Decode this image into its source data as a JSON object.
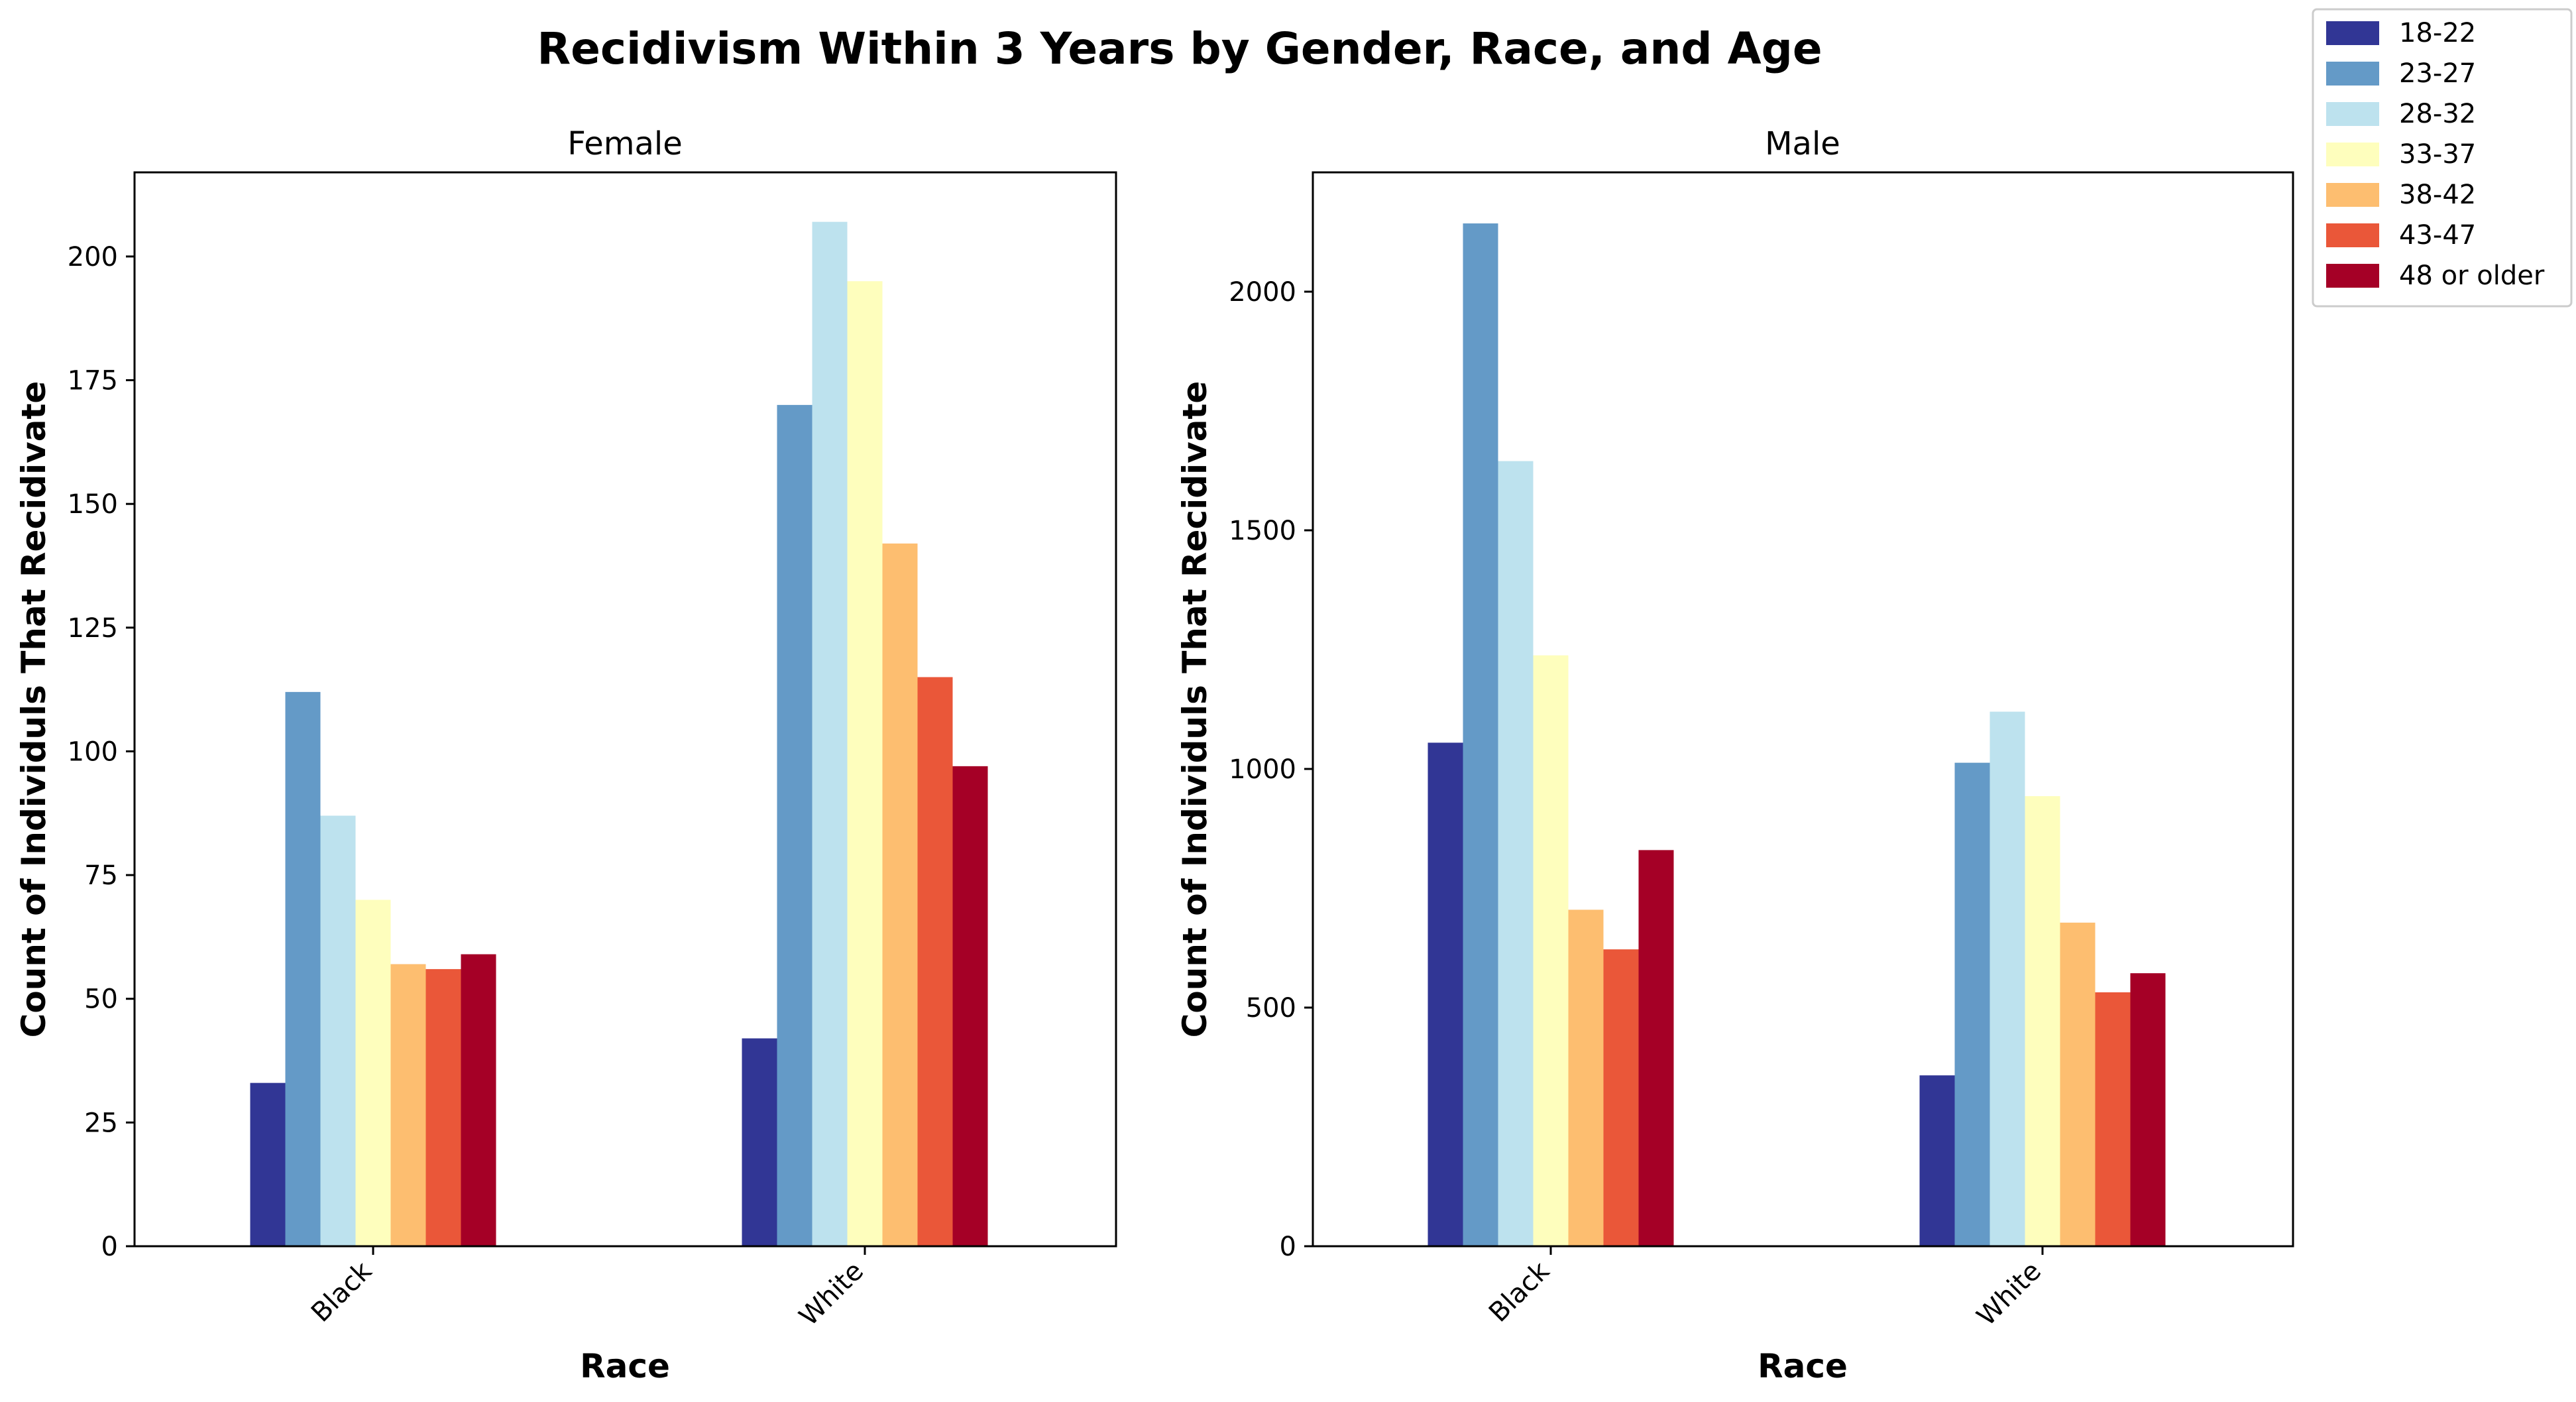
{
  "figure": {
    "title": "Recidivism Within 3 Years by Gender, Race, and Age"
  },
  "legend": {
    "placement": "top-right (outside axes)",
    "entries": [
      {
        "label": "18-22",
        "color": "#313695"
      },
      {
        "label": "23-27",
        "color": "#649ac7"
      },
      {
        "label": "28-32",
        "color": "#bde2ee"
      },
      {
        "label": "33-37",
        "color": "#fefebd"
      },
      {
        "label": "38-42",
        "color": "#fdbe70"
      },
      {
        "label": "43-47",
        "color": "#ea5739"
      },
      {
        "label": "48 or older",
        "color": "#a50026"
      }
    ]
  },
  "chart_data": [
    {
      "type": "bar",
      "title": "Female",
      "xlabel": "Race",
      "ylabel": "Count of Individuls That Recidivate",
      "categories": [
        "Black",
        "White"
      ],
      "ylim": [
        0,
        217
      ],
      "yticks": [
        0,
        25,
        50,
        75,
        100,
        125,
        150,
        175,
        200
      ],
      "grid": false,
      "series": [
        {
          "name": "18-22",
          "values": [
            33,
            42
          ]
        },
        {
          "name": "23-27",
          "values": [
            112,
            170
          ]
        },
        {
          "name": "28-32",
          "values": [
            87,
            207
          ]
        },
        {
          "name": "33-37",
          "values": [
            70,
            195
          ]
        },
        {
          "name": "38-42",
          "values": [
            57,
            142
          ]
        },
        {
          "name": "43-47",
          "values": [
            56,
            115
          ]
        },
        {
          "name": "48 or older",
          "values": [
            59,
            97
          ]
        }
      ]
    },
    {
      "type": "bar",
      "title": "Male",
      "xlabel": "Race",
      "ylabel": "Count of Individuls That Recidivate",
      "categories": [
        "Black",
        "White"
      ],
      "ylim": [
        0,
        2250
      ],
      "yticks": [
        0,
        500,
        1000,
        1500,
        2000
      ],
      "grid": false,
      "series": [
        {
          "name": "18-22",
          "values": [
            1055,
            358
          ]
        },
        {
          "name": "23-27",
          "values": [
            2143,
            1013
          ]
        },
        {
          "name": "28-32",
          "values": [
            1645,
            1120
          ]
        },
        {
          "name": "33-37",
          "values": [
            1238,
            943
          ]
        },
        {
          "name": "38-42",
          "values": [
            705,
            678
          ]
        },
        {
          "name": "43-47",
          "values": [
            622,
            532
          ]
        },
        {
          "name": "48 or older",
          "values": [
            830,
            572
          ]
        }
      ]
    }
  ]
}
